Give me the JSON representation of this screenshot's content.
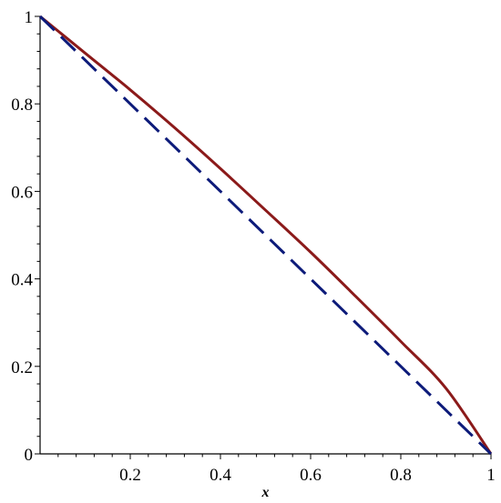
{
  "chart_data": {
    "type": "line",
    "title": "",
    "xlabel": "x",
    "ylabel": "",
    "xlim": [
      0,
      1
    ],
    "ylim": [
      0,
      1
    ],
    "x_ticks": [
      0.2,
      0.4,
      0.6,
      0.8,
      1
    ],
    "x_tick_labels": [
      "0.2",
      "0.4",
      "0.6",
      "0.8",
      "1"
    ],
    "y_ticks": [
      0,
      0.2,
      0.4,
      0.6,
      0.8,
      1
    ],
    "y_tick_labels": [
      "0",
      "0.2",
      "0.4",
      "0.6",
      "0.8",
      "1"
    ],
    "grid": false,
    "legend": "none",
    "series": [
      {
        "style": "solid",
        "color": "#8b1a1a",
        "x": [
          0,
          0.1,
          0.2,
          0.3,
          0.4,
          0.5,
          0.6,
          0.7,
          0.8,
          0.9,
          1
        ],
        "y": [
          1,
          0.916,
          0.832,
          0.744,
          0.652,
          0.557,
          0.461,
          0.36,
          0.257,
          0.15,
          0
        ]
      },
      {
        "style": "dashed",
        "color": "#0d1b7a",
        "x": [
          0,
          1
        ],
        "y": [
          1,
          0
        ]
      }
    ]
  }
}
